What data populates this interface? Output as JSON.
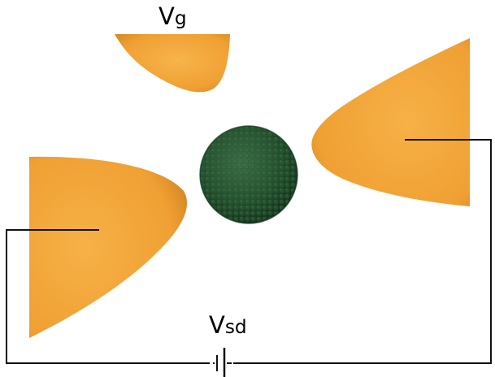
{
  "labels": {
    "gate": {
      "main": "V",
      "sub": "g"
    },
    "source_drain": {
      "main": "V",
      "sub": "sd"
    }
  },
  "colors": {
    "electrode": "#f2a33a",
    "electrode_shade": "#c97d1f",
    "nanoparticle": "#1f4e2a",
    "nanoparticle_highlight": "#3f7a4a",
    "wire": "#111111",
    "background": "#ffffff"
  },
  "icons": {
    "battery": "battery-symbol-icon"
  }
}
